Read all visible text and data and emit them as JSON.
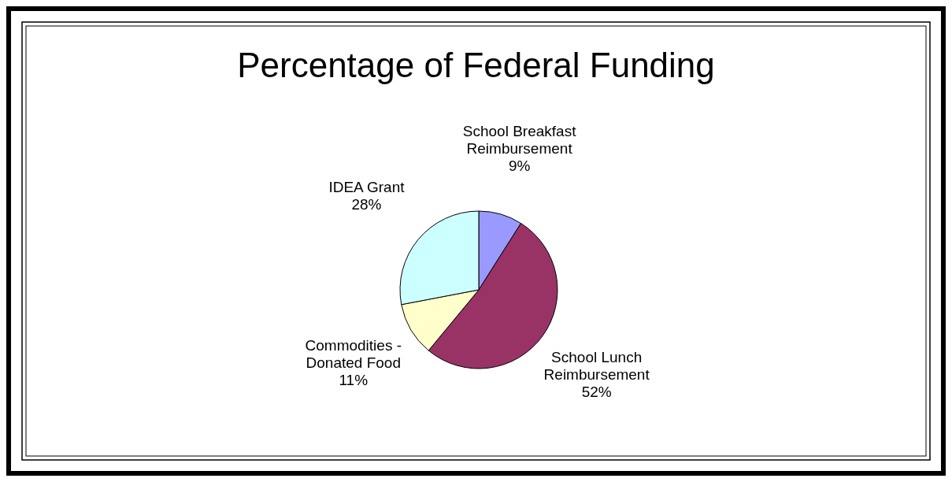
{
  "chart_data": {
    "type": "pie",
    "title": "Percentage of Federal Funding",
    "categories": [
      "School Breakfast Reimbursement",
      "School Lunch Reimbursement",
      "Commodities - Donated Food",
      "IDEA Grant"
    ],
    "values": [
      9,
      52,
      11,
      28
    ],
    "colors": [
      "#9999ff",
      "#993366",
      "#ffffcc",
      "#ccffff"
    ],
    "value_labels": [
      "9%",
      "52%",
      "11%",
      "28%"
    ]
  }
}
